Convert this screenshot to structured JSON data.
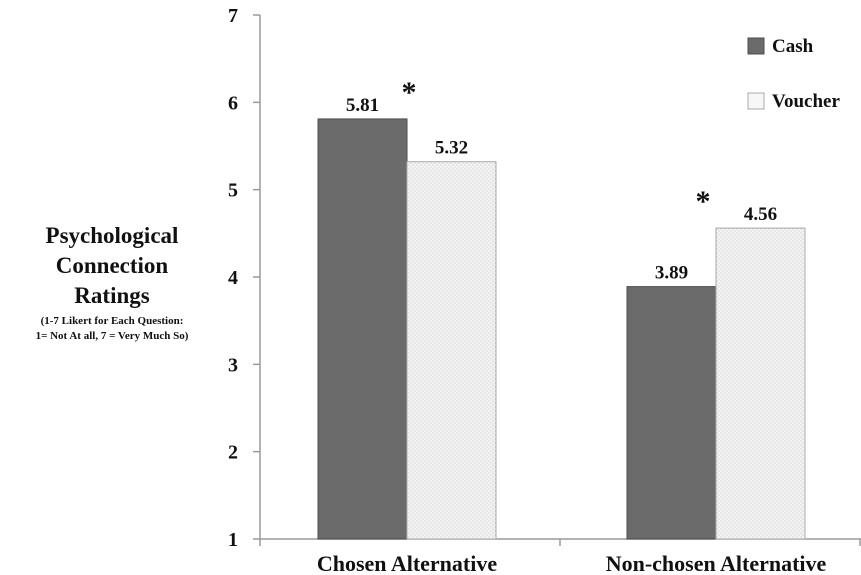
{
  "chart_data": {
    "type": "bar",
    "ylabel": "Psychological Connection Ratings",
    "ylabel_note_line1": "(1-7 Likert for Each Question:",
    "ylabel_note_line2": "1= Not At all, 7 = Very Much So)",
    "categories": [
      "Chosen Alternative",
      "Non-chosen Alternative"
    ],
    "series": [
      {
        "name": "Cash",
        "values": [
          5.81,
          3.89
        ],
        "color": "#6b6b6b"
      },
      {
        "name": "Voucher",
        "values": [
          5.32,
          4.56
        ],
        "color": "#f1f1f1"
      }
    ],
    "data_labels": [
      [
        "5.81",
        "3.89"
      ],
      [
        "5.32",
        "4.56"
      ]
    ],
    "significance_marker": "*",
    "significance_categories": [
      0,
      1
    ],
    "ylim": [
      1,
      7
    ],
    "yticks": [
      1,
      2,
      3,
      4,
      5,
      6,
      7
    ],
    "grid": false,
    "legend_position": "top-right"
  }
}
